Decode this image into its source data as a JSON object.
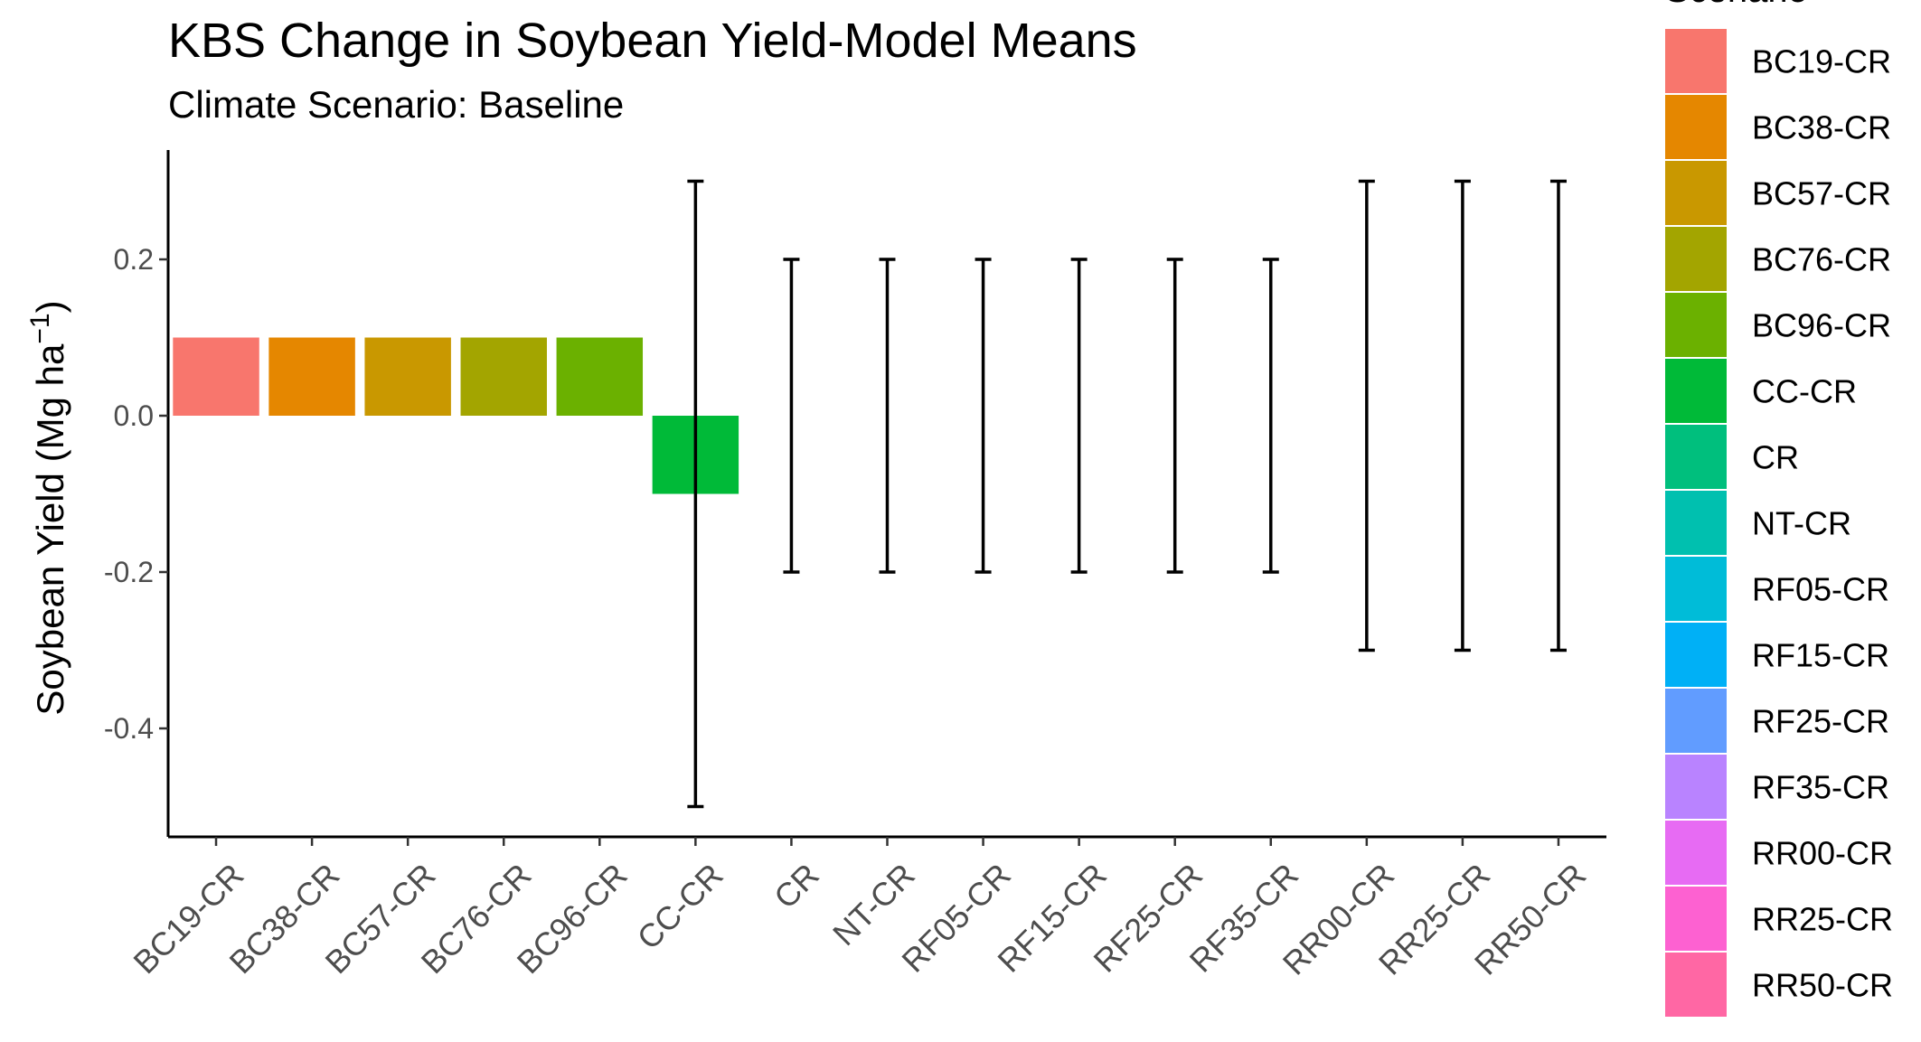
{
  "chart_data": {
    "type": "bar",
    "title": "KBS Change in Soybean Yield-Model Means",
    "subtitle": "Climate Scenario: Baseline",
    "ylabel": "Soybean Yield (Mg ha",
    "ylabel_superscript": "−1",
    "ylabel_close": ")",
    "xlabel": "",
    "categories": [
      "BC19-CR",
      "BC38-CR",
      "BC57-CR",
      "BC76-CR",
      "BC96-CR",
      "CC-CR",
      "CR",
      "NT-CR",
      "RF05-CR",
      "RF15-CR",
      "RF25-CR",
      "RF35-CR",
      "RR00-CR",
      "RR25-CR",
      "RR50-CR"
    ],
    "values": [
      0.1,
      0.1,
      0.1,
      0.1,
      0.1,
      -0.1,
      0.0,
      0.0,
      0.0,
      0.0,
      0.0,
      0.0,
      0.0,
      0.0,
      0.0
    ],
    "error_low": [
      null,
      null,
      null,
      null,
      null,
      -0.5,
      -0.2,
      -0.2,
      -0.2,
      -0.2,
      -0.2,
      -0.2,
      -0.3,
      -0.3,
      -0.3
    ],
    "error_high": [
      null,
      null,
      null,
      null,
      null,
      0.3,
      0.2,
      0.2,
      0.2,
      0.2,
      0.2,
      0.2,
      0.3,
      0.3,
      0.3
    ],
    "colors": [
      "#F8766D",
      "#E58700",
      "#C99800",
      "#A3A500",
      "#6BB100",
      "#00BA38",
      "#00BF7D",
      "#00C0AF",
      "#00BCD8",
      "#00B0F6",
      "#619CFF",
      "#B983FF",
      "#E76BF3",
      "#FD61D1",
      "#FF67A4"
    ],
    "yticks": [
      "0.2",
      "0.0",
      "-0.2",
      "-0.4"
    ],
    "ytick_values": [
      0.2,
      0.0,
      -0.2,
      -0.4
    ],
    "ylim": [
      -0.535,
      0.335
    ],
    "grid": false,
    "legend": {
      "title": "Scenario",
      "placement": "right",
      "items": [
        "BC19-CR",
        "BC38-CR",
        "BC57-CR",
        "BC76-CR",
        "BC96-CR",
        "CC-CR",
        "CR",
        "NT-CR",
        "RF05-CR",
        "RF15-CR",
        "RF25-CR",
        "RF35-CR",
        "RR00-CR",
        "RR25-CR",
        "RR50-CR"
      ]
    }
  }
}
